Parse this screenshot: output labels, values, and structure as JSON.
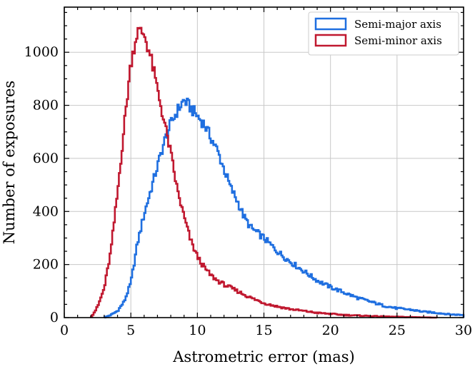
{
  "chart_data": {
    "type": "histogram",
    "xlabel": "Astrometric error (mas)",
    "ylabel": "Number of exposures",
    "xlim": [
      0,
      30
    ],
    "ylim": [
      0,
      1170
    ],
    "xticks": [
      0,
      5,
      10,
      15,
      20,
      25,
      30
    ],
    "yticks": [
      0,
      200,
      400,
      600,
      800,
      1000
    ],
    "grid": true,
    "legend_position": "top-right",
    "bin_width": 0.1,
    "series": [
      {
        "name": "Semi-major axis",
        "color": "#1f6fe0",
        "points": [
          [
            3.0,
            0
          ],
          [
            3.5,
            10
          ],
          [
            4.0,
            25
          ],
          [
            4.5,
            60
          ],
          [
            5.0,
            130
          ],
          [
            5.5,
            280
          ],
          [
            6.0,
            390
          ],
          [
            6.5,
            480
          ],
          [
            7.0,
            570
          ],
          [
            7.5,
            660
          ],
          [
            8.0,
            730
          ],
          [
            8.5,
            780
          ],
          [
            9.0,
            820
          ],
          [
            9.5,
            790
          ],
          [
            10.0,
            760
          ],
          [
            10.5,
            730
          ],
          [
            11.0,
            680
          ],
          [
            11.5,
            630
          ],
          [
            12.0,
            560
          ],
          [
            12.5,
            490
          ],
          [
            13.0,
            440
          ],
          [
            13.5,
            380
          ],
          [
            14.0,
            340
          ],
          [
            15.0,
            300
          ],
          [
            16.0,
            250
          ],
          [
            17.0,
            210
          ],
          [
            18.0,
            175
          ],
          [
            19.0,
            140
          ],
          [
            20.0,
            115
          ],
          [
            21.0,
            95
          ],
          [
            22.0,
            75
          ],
          [
            23.0,
            60
          ],
          [
            24.0,
            45
          ],
          [
            25.0,
            35
          ],
          [
            26.0,
            30
          ],
          [
            27.0,
            22
          ],
          [
            28.0,
            18
          ],
          [
            29.0,
            12
          ],
          [
            30.0,
            10
          ]
        ]
      },
      {
        "name": "Semi-minor axis",
        "color": "#c0182f",
        "points": [
          [
            2.0,
            0
          ],
          [
            2.5,
            40
          ],
          [
            3.0,
            110
          ],
          [
            3.5,
            250
          ],
          [
            4.0,
            470
          ],
          [
            4.5,
            720
          ],
          [
            5.0,
            960
          ],
          [
            5.5,
            1080
          ],
          [
            6.0,
            1070
          ],
          [
            6.5,
            980
          ],
          [
            7.0,
            860
          ],
          [
            7.5,
            740
          ],
          [
            8.0,
            620
          ],
          [
            8.5,
            480
          ],
          [
            9.0,
            380
          ],
          [
            9.5,
            290
          ],
          [
            10.0,
            230
          ],
          [
            10.5,
            190
          ],
          [
            11.0,
            160
          ],
          [
            11.5,
            140
          ],
          [
            12.0,
            125
          ],
          [
            13.0,
            100
          ],
          [
            14.0,
            75
          ],
          [
            15.0,
            55
          ],
          [
            16.0,
            42
          ],
          [
            17.0,
            32
          ],
          [
            18.0,
            25
          ],
          [
            19.0,
            18
          ],
          [
            20.0,
            14
          ],
          [
            21.0,
            10
          ],
          [
            22.0,
            8
          ],
          [
            23.0,
            6
          ],
          [
            24.0,
            4
          ],
          [
            25.0,
            3
          ],
          [
            26.0,
            2
          ],
          [
            27.0,
            1
          ],
          [
            28.0,
            0
          ]
        ]
      }
    ]
  }
}
